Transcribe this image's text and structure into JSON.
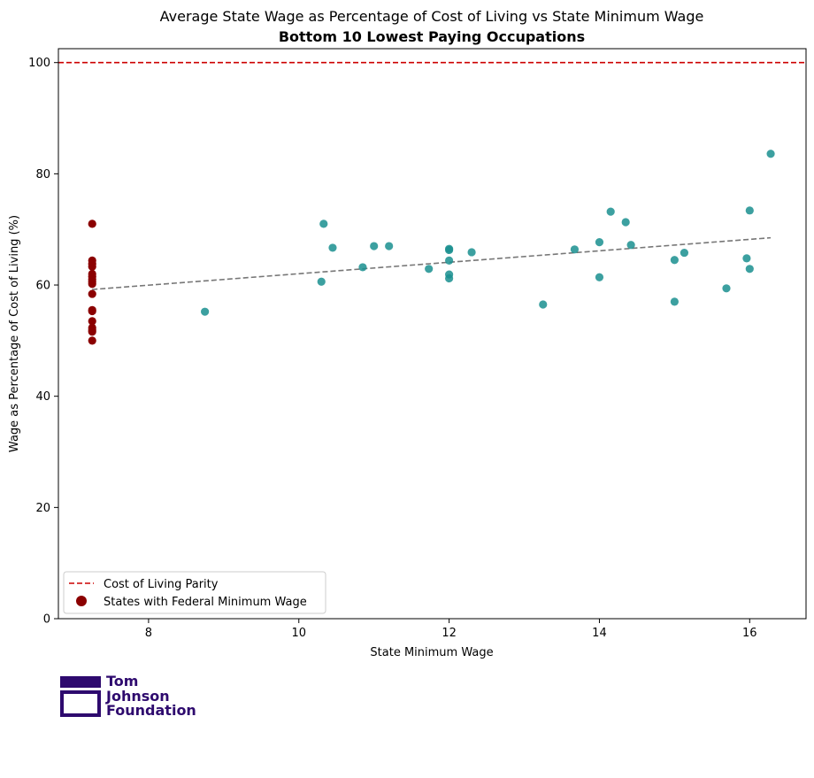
{
  "chart_data": {
    "type": "scatter",
    "title": "Average State Wage as Percentage of Cost of Living vs State Minimum Wage",
    "subtitle": "Bottom 10 Lowest Paying Occupations",
    "xlabel": "State Minimum Wage",
    "ylabel": "Wage as Percentage of Cost of Living (%)",
    "xlim": [
      6.8,
      16.75
    ],
    "ylim": [
      0,
      102.5
    ],
    "xticks": [
      8,
      10,
      12,
      14,
      16
    ],
    "yticks": [
      0,
      20,
      40,
      60,
      80,
      100
    ],
    "grid": false,
    "legend_position": "lower-left",
    "reference_line": {
      "name": "Cost of Living Parity",
      "y": 100,
      "color": "#cc0000"
    },
    "trend_line": {
      "x": [
        7.25,
        16.28
      ],
      "y": [
        59.2,
        68.5
      ],
      "color": "#777777"
    },
    "series": [
      {
        "name": "States with Federal Minimum Wage",
        "color": "#8b0000",
        "points": [
          [
            7.25,
            71.0
          ],
          [
            7.25,
            64.4
          ],
          [
            7.25,
            63.8
          ],
          [
            7.25,
            63.3
          ],
          [
            7.25,
            62.0
          ],
          [
            7.25,
            61.5
          ],
          [
            7.25,
            61.0
          ],
          [
            7.25,
            60.6
          ],
          [
            7.25,
            60.2
          ],
          [
            7.25,
            58.4
          ],
          [
            7.25,
            55.5
          ],
          [
            7.25,
            55.3
          ],
          [
            7.25,
            53.5
          ],
          [
            7.25,
            52.3
          ],
          [
            7.25,
            51.9
          ],
          [
            7.25,
            51.6
          ],
          [
            7.25,
            50.0
          ]
        ]
      },
      {
        "color": "#1a8f8f",
        "points": [
          [
            8.75,
            55.2
          ],
          [
            10.3,
            60.6
          ],
          [
            10.33,
            71.0
          ],
          [
            10.45,
            66.7
          ],
          [
            10.85,
            63.2
          ],
          [
            11.0,
            67.0
          ],
          [
            11.2,
            67.0
          ],
          [
            11.73,
            62.9
          ],
          [
            12.0,
            66.5
          ],
          [
            12.0,
            66.3
          ],
          [
            12.0,
            64.4
          ],
          [
            12.0,
            61.9
          ],
          [
            12.0,
            61.2
          ],
          [
            12.3,
            65.9
          ],
          [
            13.25,
            56.5
          ],
          [
            13.67,
            66.4
          ],
          [
            14.0,
            67.7
          ],
          [
            14.0,
            61.4
          ],
          [
            14.15,
            73.2
          ],
          [
            14.35,
            71.3
          ],
          [
            14.42,
            67.2
          ],
          [
            15.0,
            64.5
          ],
          [
            15.0,
            57.0
          ],
          [
            15.13,
            65.8
          ],
          [
            15.69,
            59.4
          ],
          [
            15.96,
            64.8
          ],
          [
            16.0,
            73.4
          ],
          [
            16.0,
            62.9
          ],
          [
            16.28,
            83.6
          ]
        ]
      }
    ]
  },
  "logo": {
    "line1": "Tom",
    "line2": "Johnson",
    "line3": "Foundation",
    "color": "#2e0a6e"
  }
}
